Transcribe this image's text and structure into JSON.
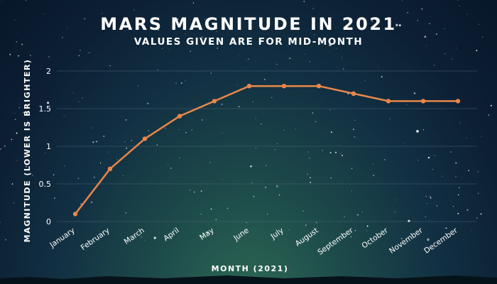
{
  "title": "MARS MAGNITUDE IN 2021",
  "subtitle": "VALUES GIVEN ARE FOR MID-MONTH",
  "colors": {
    "line": "#e8874a",
    "point": "#e8874a",
    "grid": "#5a6e80",
    "text": "#ffffff"
  },
  "chart_data": {
    "type": "line",
    "title": "MARS MAGNITUDE IN 2021",
    "subtitle": "VALUES GIVEN ARE FOR MID-MONTH",
    "xlabel": "MONTH (2021)",
    "ylabel": "MAGNITUDE (LOWER IS BRIGHTER)",
    "categories": [
      "January",
      "February",
      "March",
      "April",
      "May",
      "June",
      "July",
      "August",
      "September",
      "October",
      "November",
      "December"
    ],
    "values": [
      0.1,
      0.7,
      1.1,
      1.4,
      1.6,
      1.8,
      1.8,
      1.8,
      1.7,
      1.6,
      1.6,
      1.6
    ],
    "ylim": [
      0,
      2
    ],
    "yticks": [
      "0",
      "0.5",
      "1",
      "1.5",
      "2"
    ],
    "grid": true,
    "legend": "none"
  }
}
